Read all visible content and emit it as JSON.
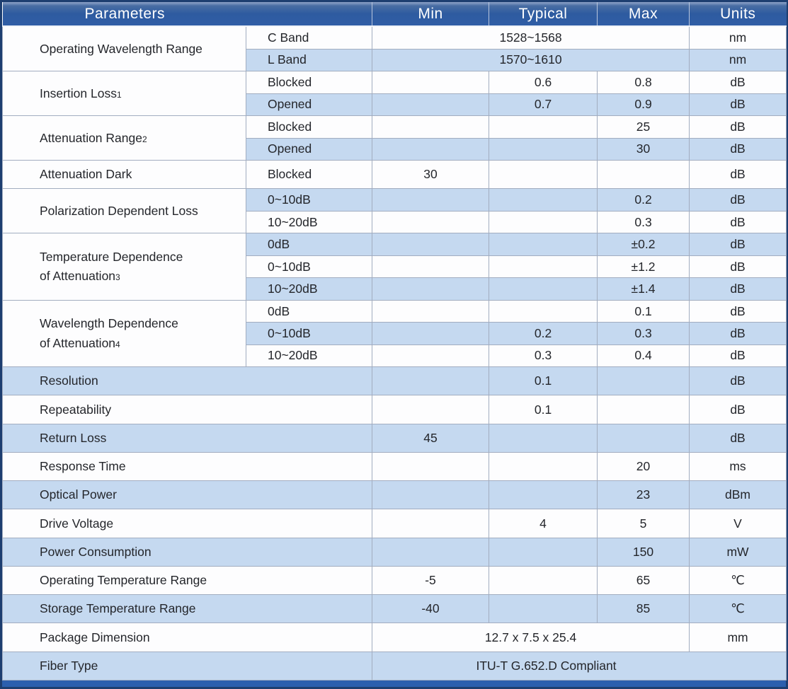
{
  "colors": {
    "header_bg": "#2e5ba0",
    "header_text": "#ffffff",
    "stripe_blue": "#c5d9f0",
    "row_white": "#fdfdfe",
    "grid_line": "#a2adc0",
    "outer_border": "#1d3e70",
    "bottom_bar": "#2c5fae",
    "body_text": "#24262b"
  },
  "header": {
    "parameters": "Parameters",
    "min": "Min",
    "typical": "Typical",
    "max": "Max",
    "units": "Units"
  },
  "table": {
    "groups": [
      {
        "param": {
          "line1": "Operating Wavelength Range",
          "note": ""
        },
        "full": false,
        "rows": [
          {
            "sub": "C Band",
            "span": "1528~1568",
            "units": "nm"
          },
          {
            "sub": "L Band",
            "span": "1570~1610",
            "units": "nm"
          }
        ]
      },
      {
        "param": {
          "line1": "Insertion Loss",
          "note": "1"
        },
        "full": false,
        "rows": [
          {
            "sub": "Blocked",
            "min": "",
            "typical": "0.6",
            "max": "0.8",
            "units": "dB"
          },
          {
            "sub": "Opened",
            "min": "",
            "typical": "0.7",
            "max": "0.9",
            "units": "dB"
          }
        ]
      },
      {
        "param": {
          "line1": "Attenuation Range",
          "note": "2"
        },
        "full": false,
        "rows": [
          {
            "sub": "Blocked",
            "min": "",
            "typical": "",
            "max": "25",
            "units": "dB"
          },
          {
            "sub": "Opened",
            "min": "",
            "typical": "",
            "max": "30",
            "units": "dB"
          }
        ]
      },
      {
        "param": {
          "line1": "Attenuation Dark",
          "note": ""
        },
        "full": false,
        "rows": [
          {
            "sub": "Blocked",
            "min": "30",
            "typical": "",
            "max": "",
            "units": "dB"
          }
        ]
      },
      {
        "param": {
          "line1": "Polarization Dependent Loss",
          "note": ""
        },
        "full": false,
        "rows": [
          {
            "sub": "0~10dB",
            "min": "",
            "typical": "",
            "max": "0.2",
            "units": "dB"
          },
          {
            "sub": "10~20dB",
            "min": "",
            "typical": "",
            "max": "0.3",
            "units": "dB"
          }
        ]
      },
      {
        "param": {
          "line1": "Temperature Dependence",
          "line2": "of Attenuation",
          "note": "3"
        },
        "full": false,
        "rows": [
          {
            "sub": "0dB",
            "min": "",
            "typical": "",
            "max": "±0.2",
            "units": "dB"
          },
          {
            "sub": "0~10dB",
            "min": "",
            "typical": "",
            "max": "±1.2",
            "units": "dB"
          },
          {
            "sub": "10~20dB",
            "min": "",
            "typical": "",
            "max": "±1.4",
            "units": "dB"
          }
        ]
      },
      {
        "param": {
          "line1": "Wavelength Dependence",
          "line2": "of Attenuation",
          "note": "4"
        },
        "full": false,
        "rows": [
          {
            "sub": "0dB",
            "min": "",
            "typical": "",
            "max": "0.1",
            "units": "dB"
          },
          {
            "sub": "0~10dB",
            "min": "",
            "typical": "0.2",
            "max": "0.3",
            "units": "dB"
          },
          {
            "sub": "10~20dB",
            "min": "",
            "typical": "0.3",
            "max": "0.4",
            "units": "dB"
          }
        ]
      },
      {
        "param": {
          "line1": "Resolution",
          "note": ""
        },
        "full": true,
        "rows": [
          {
            "min": "",
            "typical": "0.1",
            "max": "",
            "units": "dB"
          }
        ]
      },
      {
        "param": {
          "line1": "Repeatability",
          "note": ""
        },
        "full": true,
        "rows": [
          {
            "min": "",
            "typical": "0.1",
            "max": "",
            "units": "dB"
          }
        ]
      },
      {
        "param": {
          "line1": "Return Loss",
          "note": ""
        },
        "full": true,
        "rows": [
          {
            "min": "45",
            "typical": "",
            "max": "",
            "units": "dB"
          }
        ]
      },
      {
        "param": {
          "line1": "Response Time",
          "note": ""
        },
        "full": true,
        "rows": [
          {
            "min": "",
            "typical": "",
            "max": "20",
            "units": "ms"
          }
        ]
      },
      {
        "param": {
          "line1": "Optical Power",
          "note": ""
        },
        "full": true,
        "rows": [
          {
            "min": "",
            "typical": "",
            "max": "23",
            "units": "dBm"
          }
        ]
      },
      {
        "param": {
          "line1": "Drive Voltage",
          "note": ""
        },
        "full": true,
        "rows": [
          {
            "min": "",
            "typical": "4",
            "max": "5",
            "units": "V"
          }
        ]
      },
      {
        "param": {
          "line1": "Power Consumption",
          "note": ""
        },
        "full": true,
        "rows": [
          {
            "min": "",
            "typical": "",
            "max": "150",
            "units": "mW"
          }
        ]
      },
      {
        "param": {
          "line1": "Operating Temperature Range",
          "note": ""
        },
        "full": true,
        "rows": [
          {
            "min": "-5",
            "typical": "",
            "max": "65",
            "units": "℃"
          }
        ]
      },
      {
        "param": {
          "line1": "Storage Temperature Range",
          "note": ""
        },
        "full": true,
        "rows": [
          {
            "min": "-40",
            "typical": "",
            "max": "85",
            "units": "℃"
          }
        ]
      },
      {
        "param": {
          "line1": "Package Dimension",
          "note": ""
        },
        "full": true,
        "rows": [
          {
            "span": "12.7 x 7.5 x 25.4",
            "units": "mm"
          }
        ]
      },
      {
        "param": {
          "line1": "Fiber Type",
          "note": ""
        },
        "full": true,
        "rows": [
          {
            "span_all": "ITU-T G.652.D Compliant"
          }
        ]
      }
    ]
  }
}
